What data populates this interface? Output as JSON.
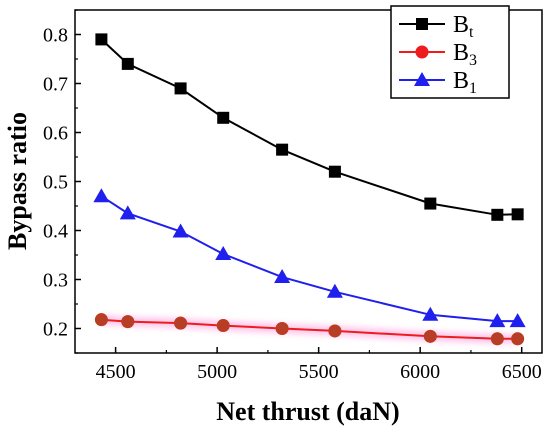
{
  "chart_data": {
    "type": "line",
    "xlabel": "Net thrust (daN)",
    "ylabel": "Bypass ratio",
    "xlim": [
      4300,
      6600
    ],
    "ylim": [
      0.15,
      0.85
    ],
    "xticks": [
      4500,
      5000,
      5500,
      6000,
      6500
    ],
    "yticks": [
      0.2,
      0.3,
      0.4,
      0.5,
      0.6,
      0.7,
      0.8
    ],
    "xtick_labels": [
      "4500",
      "5000",
      "5500",
      "6000",
      "6500"
    ],
    "ytick_labels": [
      "0.2",
      "0.3",
      "0.4",
      "0.5",
      "0.6",
      "0.7",
      "0.8"
    ],
    "grid": false,
    "legend_position": "top-right",
    "series": [
      {
        "name": "Bt",
        "name_base": "B",
        "name_sub": "t",
        "color": "#000000",
        "marker": "square",
        "x": [
          4430,
          4560,
          4820,
          5030,
          5320,
          5580,
          6050,
          6380,
          6480
        ],
        "y": [
          0.79,
          0.74,
          0.69,
          0.63,
          0.565,
          0.52,
          0.455,
          0.432,
          0.433
        ]
      },
      {
        "name": "B3",
        "name_base": "B",
        "name_sub": "3",
        "color": "#ee1c1c",
        "marker": "circle",
        "x": [
          4430,
          4560,
          4820,
          5030,
          5320,
          5580,
          6050,
          6380,
          6480
        ],
        "y": [
          0.218,
          0.214,
          0.211,
          0.206,
          0.2,
          0.195,
          0.184,
          0.179,
          0.179
        ]
      },
      {
        "name": "B1",
        "name_base": "B",
        "name_sub": "1",
        "color": "#1f1fee",
        "marker": "triangle",
        "x": [
          4430,
          4560,
          4820,
          5030,
          5320,
          5580,
          6050,
          6380,
          6480
        ],
        "y": [
          0.47,
          0.435,
          0.398,
          0.352,
          0.305,
          0.275,
          0.228,
          0.215,
          0.215
        ]
      }
    ]
  }
}
